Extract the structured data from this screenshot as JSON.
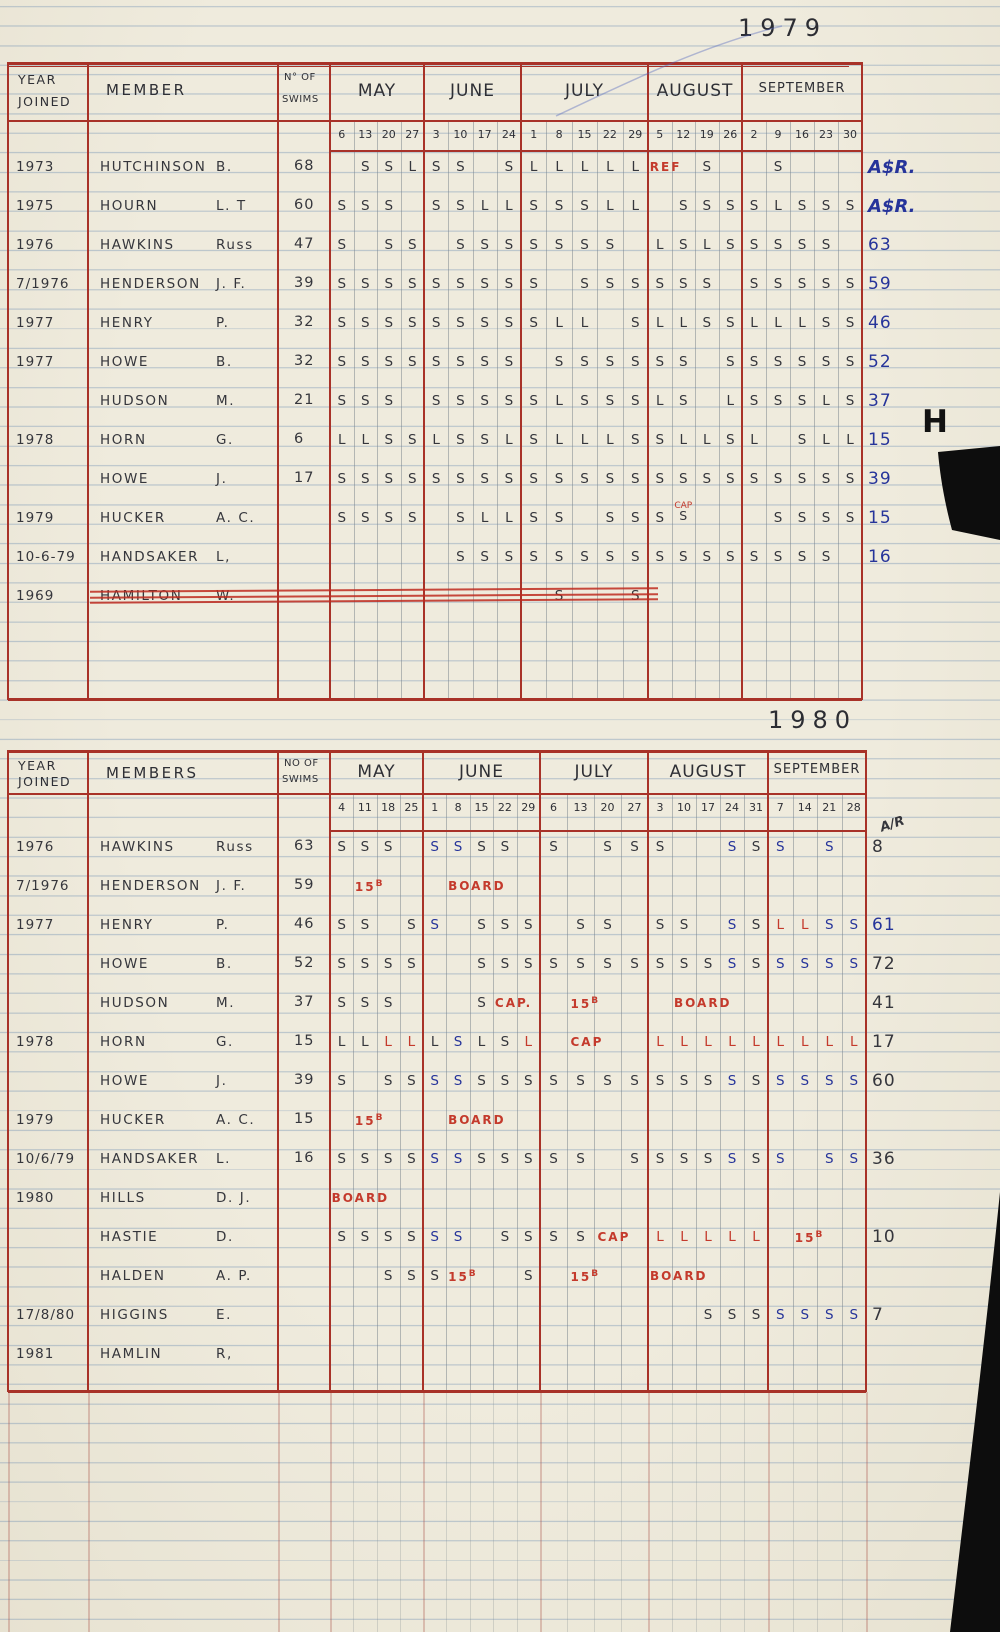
{
  "page": {
    "title_1979": "1979",
    "title_1980": "1980",
    "tab_letter": "H"
  },
  "ink_colors": {
    "dark": "#35363c",
    "blue": "#26349a",
    "red": "#c43a2c",
    "table_line_red": "#a83228"
  },
  "table1979": {
    "headers": {
      "year1": "YEAR",
      "year2": "JOINED",
      "member": "MEMBER",
      "swims1": "N° OF",
      "swims2": "SWIMS"
    },
    "months": [
      {
        "name": "MAY",
        "dates": [
          "6",
          "13",
          "20",
          "27"
        ]
      },
      {
        "name": "JUNE",
        "dates": [
          "3",
          "10",
          "17",
          "24"
        ]
      },
      {
        "name": "JULY",
        "dates": [
          "1",
          "8",
          "15",
          "22",
          "29"
        ]
      },
      {
        "name": "AUGUST",
        "dates": [
          "5",
          "12",
          "19",
          "26"
        ]
      },
      {
        "name": "SEPTEMBER",
        "dates": [
          "2",
          "9",
          "16",
          "23",
          "30"
        ]
      }
    ],
    "rows": [
      {
        "year": "1973",
        "name": "HUTCHINSON",
        "init": "B.",
        "swims": "68",
        "total": "A$R.",
        "total_color": "blue",
        "marks": [
          [
            "",
            "S",
            "S",
            "L"
          ],
          [
            "S",
            "S",
            "",
            "S"
          ],
          [
            "L",
            "L",
            "L",
            "L",
            "L"
          ],
          [
            "!REF",
            "",
            "S",
            ""
          ],
          [
            "",
            "S",
            "",
            "",
            ""
          ]
        ]
      },
      {
        "year": "1975",
        "name": "HOURN",
        "init": "L. T",
        "swims": "60",
        "total": "A$R.",
        "total_color": "blue",
        "marks": [
          [
            "S",
            "S",
            "S",
            ""
          ],
          [
            "S",
            "S",
            "L",
            "L"
          ],
          [
            "S",
            "S",
            "S",
            "L",
            "L"
          ],
          [
            "",
            "S",
            "S",
            "S"
          ],
          [
            "S",
            "L",
            "S",
            "S",
            "S"
          ]
        ]
      },
      {
        "year": "1976",
        "name": "HAWKINS",
        "init": "Russ",
        "swims": "47",
        "total": "63",
        "total_color": "blue",
        "marks": [
          [
            "S",
            "",
            "S",
            "S"
          ],
          [
            "",
            "S",
            "S",
            "S"
          ],
          [
            "S",
            "S",
            "S",
            "S",
            ""
          ],
          [
            "L",
            "S",
            "L",
            "S"
          ],
          [
            "S",
            "S",
            "S",
            "S",
            ""
          ]
        ]
      },
      {
        "year": "7/1976",
        "name": "HENDERSON",
        "init": "J. F.",
        "swims": "39",
        "total": "59",
        "total_color": "blue",
        "marks": [
          [
            "S",
            "S",
            "S",
            "S"
          ],
          [
            "S",
            "S",
            "S",
            "S"
          ],
          [
            "S",
            "",
            "S",
            "S",
            "S"
          ],
          [
            "S",
            "S",
            "S",
            ""
          ],
          [
            "S",
            "S",
            "S",
            "S",
            "S"
          ]
        ]
      },
      {
        "year": "1977",
        "name": "HENRY",
        "init": "P.",
        "swims": "32",
        "total": "46",
        "total_color": "blue",
        "marks": [
          [
            "S",
            "S",
            "S",
            "S"
          ],
          [
            "S",
            "S",
            "S",
            "S"
          ],
          [
            "S",
            "L",
            "L",
            "",
            "S"
          ],
          [
            "L",
            "L",
            "S",
            "S"
          ],
          [
            "L",
            "L",
            "L",
            "S",
            "S"
          ]
        ]
      },
      {
        "year": "1977",
        "name": "HOWE",
        "init": "B.",
        "swims": "32",
        "total": "52",
        "total_color": "blue",
        "marks": [
          [
            "S",
            "S",
            "S",
            "S"
          ],
          [
            "S",
            "S",
            "S",
            "S"
          ],
          [
            "",
            "S",
            "S",
            "S",
            "S"
          ],
          [
            "S",
            "S",
            "",
            "S"
          ],
          [
            "S",
            "S",
            "S",
            "S",
            "S"
          ]
        ]
      },
      {
        "year": "",
        "name": "HUDSON",
        "init": "M.",
        "swims": "21",
        "total": "37",
        "total_color": "blue",
        "marks": [
          [
            "S",
            "S",
            "S",
            ""
          ],
          [
            "S",
            "S",
            "S",
            "S"
          ],
          [
            "S",
            "L",
            "S",
            "S",
            "S"
          ],
          [
            "L",
            "S",
            "",
            "L"
          ],
          [
            "S",
            "S",
            "S",
            "L",
            "S"
          ]
        ]
      },
      {
        "year": "1978",
        "name": "HORN",
        "init": "G.",
        "swims": "6",
        "total": "15",
        "total_color": "blue",
        "marks": [
          [
            "L",
            "L",
            "S",
            "S"
          ],
          [
            "L",
            "S",
            "S",
            "L"
          ],
          [
            "S",
            "L",
            "L",
            "L",
            "S"
          ],
          [
            "S",
            "L",
            "L",
            "S"
          ],
          [
            "L",
            "",
            "S",
            "L",
            "L"
          ]
        ]
      },
      {
        "year": "",
        "name": "HOWE",
        "init": "J.",
        "swims": "17",
        "total": "39",
        "total_color": "blue",
        "marks": [
          [
            "S",
            "S",
            "S",
            "S"
          ],
          [
            "S",
            "S",
            "S",
            "S"
          ],
          [
            "S",
            "S",
            "S",
            "S",
            "S"
          ],
          [
            "S",
            "S",
            "S",
            "S"
          ],
          [
            "S",
            "S",
            "S",
            "S",
            "S"
          ]
        ]
      },
      {
        "year": "1979",
        "name": "HUCKER",
        "init": "A. C.",
        "swims": "",
        "total": "15",
        "total_color": "blue",
        "marks": [
          [
            "S",
            "S",
            "S",
            "S"
          ],
          [
            "",
            "S",
            "L",
            "L"
          ],
          [
            "S",
            "S",
            "",
            "S",
            "S"
          ],
          [
            "S",
            "!CAP;S",
            "",
            ""
          ],
          [
            "",
            "S",
            "S",
            "S",
            "S"
          ]
        ]
      },
      {
        "year": "10-6-79",
        "name": "HANDSAKER",
        "init": "L,",
        "swims": "",
        "total": "16",
        "total_color": "blue",
        "marks": [
          [
            "",
            "",
            "",
            ""
          ],
          [
            "",
            "S",
            "S",
            "S"
          ],
          [
            "S",
            "S",
            "S",
            "S",
            "S"
          ],
          [
            "S",
            "S",
            "S",
            "S"
          ],
          [
            "S",
            "S",
            "S",
            "S",
            ""
          ]
        ]
      },
      {
        "year": "1969",
        "name": "HAMILTON",
        "init": "W.",
        "swims": "",
        "total": "",
        "total_color": "blue",
        "struck": true,
        "marks": [
          [
            "",
            "",
            "",
            ""
          ],
          [
            "",
            "",
            "",
            ""
          ],
          [
            "",
            "S",
            "",
            "",
            "S"
          ],
          [
            "",
            "",
            "",
            ""
          ],
          [
            "",
            "",
            "",
            "",
            ""
          ]
        ]
      }
    ]
  },
  "table1980": {
    "headers": {
      "year1": "YEAR",
      "year2": "JOINED",
      "member": "MEMBERS",
      "swims1": "NO OF",
      "swims2": "SWIMS"
    },
    "months": [
      {
        "name": "MAY",
        "dates": [
          "4",
          "11",
          "18",
          "25"
        ]
      },
      {
        "name": "JUNE",
        "dates": [
          "1",
          "8",
          "15",
          "22",
          "29"
        ]
      },
      {
        "name": "JULY",
        "dates": [
          "6",
          "13",
          "20",
          "27"
        ]
      },
      {
        "name": "AUGUST",
        "dates": [
          "3",
          "10",
          "17",
          "24",
          "31"
        ]
      },
      {
        "name": "SEPTEMBER",
        "dates": [
          "7",
          "14",
          "21",
          "28"
        ]
      }
    ],
    "rows": [
      {
        "year": "1976",
        "name": "HAWKINS",
        "init": "Russ",
        "swims": "63",
        "total": "8",
        "total_color": "ink",
        "note": "A/R",
        "marks": [
          [
            "S",
            "S",
            "S",
            ""
          ],
          [
            "+S",
            "+S",
            "S",
            "S",
            ""
          ],
          [
            "S",
            "",
            "S",
            "S"
          ],
          [
            "S",
            "",
            "",
            "+S",
            "S"
          ],
          [
            "+S",
            "",
            "+S",
            ""
          ]
        ]
      },
      {
        "year": "7/1976",
        "name": "HENDERSON",
        "init": "J. F.",
        "swims": "59",
        "total": "",
        "total_color": "ink",
        "marks": [
          [
            "",
            "!15B",
            "",
            ""
          ],
          [
            "",
            "!BOARD",
            "",
            "",
            ""
          ],
          [
            "",
            "",
            "",
            ""
          ],
          [
            "",
            "",
            "",
            "",
            ""
          ],
          [
            "",
            "",
            "",
            ""
          ]
        ]
      },
      {
        "year": "1977",
        "name": "HENRY",
        "init": "P.",
        "swims": "46",
        "total": "61",
        "total_color": "blue",
        "marks": [
          [
            "S",
            "S",
            "",
            "S"
          ],
          [
            "+S",
            "",
            "S",
            "S",
            "S"
          ],
          [
            "",
            "S",
            "S",
            ""
          ],
          [
            "S",
            "S",
            "",
            "+S",
            "S"
          ],
          [
            "!L",
            "!L",
            "+S",
            "+S"
          ]
        ]
      },
      {
        "year": "",
        "name": "HOWE",
        "init": "B.",
        "swims": "52",
        "total": "72",
        "total_color": "ink",
        "marks": [
          [
            "S",
            "S",
            "S",
            "S"
          ],
          [
            "",
            "",
            "S",
            "S",
            "S"
          ],
          [
            "S",
            "S",
            "S",
            "S"
          ],
          [
            "S",
            "S",
            "S",
            "+S",
            "S"
          ],
          [
            "+S",
            "+S",
            "+S",
            "+S"
          ]
        ]
      },
      {
        "year": "",
        "name": "HUDSON",
        "init": "M.",
        "swims": "37",
        "total": "41",
        "total_color": "ink",
        "marks": [
          [
            "S",
            "S",
            "S",
            ""
          ],
          [
            "",
            "",
            "S",
            "!CAP.",
            ""
          ],
          [
            "",
            "!15B",
            "",
            ""
          ],
          [
            "",
            "!BOARD",
            "",
            "",
            ""
          ],
          [
            "",
            "",
            "",
            ""
          ]
        ]
      },
      {
        "year": "1978",
        "name": "HORN",
        "init": "G.",
        "swims": "15",
        "total": "17",
        "total_color": "ink",
        "marks": [
          [
            "L",
            "L",
            "!L",
            "!L"
          ],
          [
            "L",
            "+S",
            "L",
            "S",
            "!L"
          ],
          [
            "",
            "!CAP",
            "",
            ""
          ],
          [
            "!L",
            "!L",
            "!L",
            "!L",
            "!L"
          ],
          [
            "!L",
            "!L",
            "!L",
            "!L"
          ]
        ]
      },
      {
        "year": "",
        "name": "HOWE",
        "init": "J.",
        "swims": "39",
        "total": "60",
        "total_color": "ink",
        "marks": [
          [
            "S",
            "",
            "S",
            "S"
          ],
          [
            "+S",
            "+S",
            "S",
            "S",
            "S"
          ],
          [
            "S",
            "S",
            "S",
            "S"
          ],
          [
            "S",
            "S",
            "S",
            "+S",
            "S"
          ],
          [
            "+S",
            "+S",
            "+S",
            "+S"
          ]
        ]
      },
      {
        "year": "1979",
        "name": "HUCKER",
        "init": "A. C.",
        "swims": "15",
        "total": "",
        "total_color": "ink",
        "marks": [
          [
            "",
            "!15B",
            "",
            ""
          ],
          [
            "",
            "!BOARD",
            "",
            "",
            ""
          ],
          [
            "",
            "",
            "",
            ""
          ],
          [
            "",
            "",
            "",
            "",
            ""
          ],
          [
            "",
            "",
            "",
            ""
          ]
        ]
      },
      {
        "year": "10/6/79",
        "name": "HANDSAKER",
        "init": "L.",
        "swims": "16",
        "total": "36",
        "total_color": "ink",
        "marks": [
          [
            "S",
            "S",
            "S",
            "S"
          ],
          [
            "+S",
            "+S",
            "S",
            "S",
            "S"
          ],
          [
            "S",
            "S",
            "",
            "S"
          ],
          [
            "S",
            "S",
            "S",
            "+S",
            "S"
          ],
          [
            "+S",
            "",
            "+S",
            "+S"
          ]
        ]
      },
      {
        "year": "1980",
        "name": "HILLS",
        "init": "D. J.",
        "swims": "",
        "total": "",
        "total_color": "ink",
        "marks": [
          [
            "!BOARD",
            "",
            "",
            ""
          ],
          [
            "",
            "",
            "",
            "",
            ""
          ],
          [
            "",
            "",
            "",
            ""
          ],
          [
            "",
            "",
            "",
            "",
            ""
          ],
          [
            "",
            "",
            "",
            ""
          ]
        ]
      },
      {
        "year": "",
        "name": "HASTIE",
        "init": "D.",
        "swims": "",
        "total": "10",
        "total_color": "ink",
        "marks": [
          [
            "S",
            "S",
            "S",
            "S"
          ],
          [
            "+S",
            "+S",
            "",
            "S",
            "S"
          ],
          [
            "S",
            "S",
            "!CAP",
            ""
          ],
          [
            "!L",
            "!L",
            "!L",
            "!L",
            "!L"
          ],
          [
            "",
            "!15B",
            "",
            ""
          ]
        ]
      },
      {
        "year": "",
        "name": "HALDEN",
        "init": "A. P.",
        "swims": "",
        "total": "",
        "total_color": "ink",
        "marks": [
          [
            "",
            "",
            "S",
            "S"
          ],
          [
            "S",
            "!15B",
            "",
            "",
            "S"
          ],
          [
            "",
            "!15B",
            "",
            ""
          ],
          [
            "!BOARD",
            "",
            "",
            "",
            ""
          ],
          [
            "",
            "",
            "",
            ""
          ]
        ]
      },
      {
        "year": "17/8/80",
        "name": "HIGGINS",
        "init": "E.",
        "swims": "",
        "total": "7",
        "total_color": "ink",
        "marks": [
          [
            "",
            "",
            "",
            ""
          ],
          [
            "",
            "",
            "",
            "",
            ""
          ],
          [
            "",
            "",
            "",
            ""
          ],
          [
            "",
            "",
            "S",
            "S",
            "S"
          ],
          [
            "+S",
            "+S",
            "+S",
            "+S"
          ]
        ]
      },
      {
        "year": "1981",
        "name": "HAMLIN",
        "init": "R,",
        "swims": "",
        "total": "",
        "total_color": "ink",
        "marks": [
          [
            "",
            "",
            "",
            ""
          ],
          [
            "",
            "",
            "",
            "",
            ""
          ],
          [
            "",
            "",
            "",
            ""
          ],
          [
            "",
            "",
            "",
            "",
            ""
          ],
          [
            "",
            "",
            "",
            ""
          ]
        ]
      }
    ]
  }
}
